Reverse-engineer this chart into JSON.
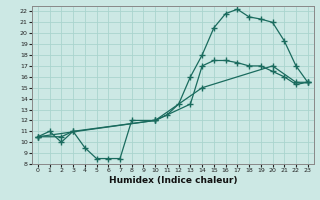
{
  "xlabel": "Humidex (Indice chaleur)",
  "bg_color": "#cce8e4",
  "grid_color": "#aad4ce",
  "line_color": "#1a6b5e",
  "xlim": [
    -0.5,
    23.5
  ],
  "ylim": [
    8,
    22.5
  ],
  "xticks": [
    0,
    1,
    2,
    3,
    4,
    5,
    6,
    7,
    8,
    9,
    10,
    11,
    12,
    13,
    14,
    15,
    16,
    17,
    18,
    19,
    20,
    21,
    22,
    23
  ],
  "yticks": [
    8,
    9,
    10,
    11,
    12,
    13,
    14,
    15,
    16,
    17,
    18,
    19,
    20,
    21,
    22
  ],
  "line1_x": [
    0,
    1,
    2,
    3,
    4,
    5,
    6,
    7,
    8,
    10,
    11,
    12,
    13,
    14,
    15,
    16,
    17,
    18,
    19,
    20,
    21,
    22,
    23
  ],
  "line1_y": [
    10.5,
    11,
    10,
    11,
    9.5,
    8.5,
    8.5,
    8.5,
    12,
    12,
    12.5,
    13.5,
    16,
    18,
    20.5,
    21.8,
    22.2,
    21.5,
    21.3,
    21,
    19.3,
    17,
    15.5
  ],
  "line2_x": [
    0,
    2,
    3,
    10,
    13,
    14,
    15,
    16,
    17,
    18,
    19,
    20,
    21,
    22,
    23
  ],
  "line2_y": [
    10.5,
    10.5,
    11,
    12,
    13.5,
    17,
    17.5,
    17.5,
    17.3,
    17,
    17,
    16.5,
    16,
    15.3,
    15.5
  ],
  "line3_x": [
    0,
    10,
    14,
    20,
    22,
    23
  ],
  "line3_y": [
    10.5,
    12,
    15,
    17,
    15.5,
    15.5
  ],
  "marker": "+",
  "marker_size": 4,
  "linewidth": 0.9
}
